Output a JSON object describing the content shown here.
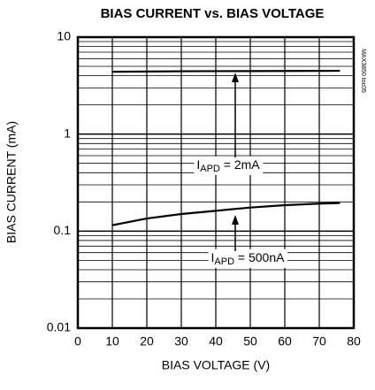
{
  "chart_data": {
    "type": "line",
    "title": "BIAS CURRENT vs. BIAS VOLTAGE",
    "x_label": "BIAS VOLTAGE (V)",
    "y_label": "BIAS CURRENT (mA)",
    "side_note": "MAX3850 toc05",
    "x": [
      10,
      20,
      30,
      40,
      50,
      60,
      70,
      76
    ],
    "series": [
      {
        "name": "IAPD = 2mA",
        "color": "#000000",
        "values": [
          4.4,
          4.42,
          4.45,
          4.46,
          4.47,
          4.48,
          4.49,
          4.5
        ]
      },
      {
        "name": "IAPD = 500nA",
        "color": "#000000",
        "values": [
          0.115,
          0.135,
          0.15,
          0.162,
          0.175,
          0.185,
          0.192,
          0.195
        ]
      }
    ],
    "annotations": [
      {
        "text": "I",
        "subscript": "APD",
        "suffix": " = 2mA"
      },
      {
        "text": "I",
        "subscript": "APD",
        "suffix": " = 500nA"
      }
    ],
    "xlim": [
      0,
      80
    ],
    "xticks": [
      0,
      10,
      20,
      30,
      40,
      50,
      60,
      70,
      80
    ],
    "ylim": [
      0.01,
      10
    ],
    "yticks": [
      0.01,
      0.1,
      1,
      10
    ],
    "log_y": true,
    "grid": true
  }
}
